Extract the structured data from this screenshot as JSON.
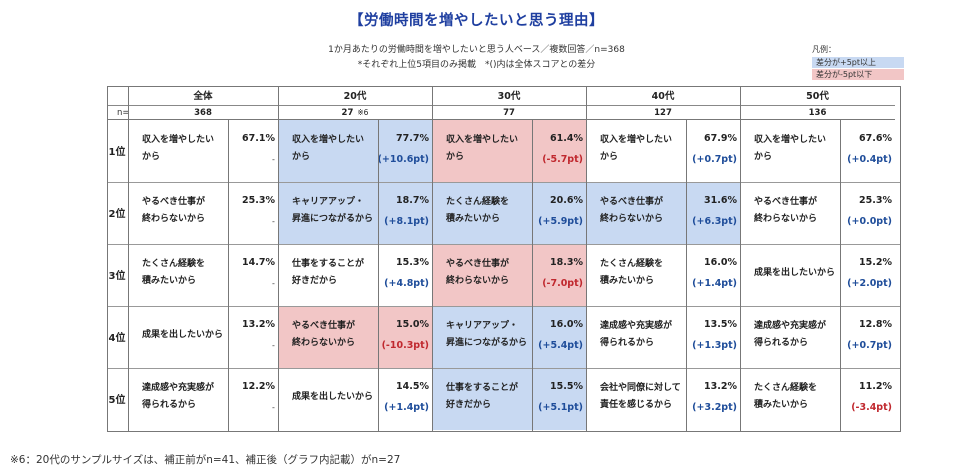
{
  "title": "【労働時間を増やしたいと思う理由】",
  "subtitle1": "1か月あたりの労働時間を増やしたいと思う人ベース／複数回答／n=368",
  "subtitle2": "*それぞれ上位5項目のみ掲載　*()内は全体スコアとの差分",
  "legend": {
    "title": "凡例：",
    "plus": "差分が+5pt以上",
    "minus": "差分が-5pt以下",
    "colors": {
      "plus": "#c8d9f2",
      "minus": "#f2c6c6"
    }
  },
  "n_label": "n=",
  "note6": "※6",
  "groups": [
    {
      "name": "全体",
      "n": "368"
    },
    {
      "name": "20代",
      "n": "27"
    },
    {
      "name": "30代",
      "n": "77"
    },
    {
      "name": "40代",
      "n": "127"
    },
    {
      "name": "50代",
      "n": "136"
    }
  ],
  "ranks": [
    "1位",
    "2位",
    "3位",
    "4位",
    "5位"
  ],
  "rows": [
    [
      {
        "l1": "収入を増やしたい",
        "l2": "から",
        "pct": "67.1%",
        "diff": "-",
        "hl": ""
      },
      {
        "l1": "収入を増やしたい",
        "l2": "から",
        "pct": "77.7%",
        "diff": "(+10.6pt)",
        "hl": "blue"
      },
      {
        "l1": "収入を増やしたい",
        "l2": "から",
        "pct": "61.4%",
        "diff": "(-5.7pt)",
        "hl": "red"
      },
      {
        "l1": "収入を増やしたい",
        "l2": "から",
        "pct": "67.9%",
        "diff": "(+0.7pt)",
        "hl": ""
      },
      {
        "l1": "収入を増やしたい",
        "l2": "から",
        "pct": "67.6%",
        "diff": "(+0.4pt)",
        "hl": ""
      }
    ],
    [
      {
        "l1": "やるべき仕事が",
        "l2": "終わらないから",
        "pct": "25.3%",
        "diff": "-",
        "hl": ""
      },
      {
        "l1": "キャリアアップ・",
        "l2": "昇進につながるから",
        "pct": "18.7%",
        "diff": "(+8.1pt)",
        "hl": "blue"
      },
      {
        "l1": "たくさん経験を",
        "l2": "積みたいから",
        "pct": "20.6%",
        "diff": "(+5.9pt)",
        "hl": "blue"
      },
      {
        "l1": "やるべき仕事が",
        "l2": "終わらないから",
        "pct": "31.6%",
        "diff": "(+6.3pt)",
        "hl": "blue"
      },
      {
        "l1": "やるべき仕事が",
        "l2": "終わらないから",
        "pct": "25.3%",
        "diff": "(+0.0pt)",
        "hl": ""
      }
    ],
    [
      {
        "l1": "たくさん経験を",
        "l2": "積みたいから",
        "pct": "14.7%",
        "diff": "-",
        "hl": ""
      },
      {
        "l1": "仕事をすることが",
        "l2": "好きだから",
        "pct": "15.3%",
        "diff": "(+4.8pt)",
        "hl": ""
      },
      {
        "l1": "やるべき仕事が",
        "l2": "終わらないから",
        "pct": "18.3%",
        "diff": "(-7.0pt)",
        "hl": "red"
      },
      {
        "l1": "たくさん経験を",
        "l2": "積みたいから",
        "pct": "16.0%",
        "diff": "(+1.4pt)",
        "hl": ""
      },
      {
        "l1": "成果を出したいから",
        "l2": "",
        "pct": "15.2%",
        "diff": "(+2.0pt)",
        "hl": ""
      }
    ],
    [
      {
        "l1": "成果を出したいから",
        "l2": "",
        "pct": "13.2%",
        "diff": "-",
        "hl": ""
      },
      {
        "l1": "やるべき仕事が",
        "l2": "終わらないから",
        "pct": "15.0%",
        "diff": "(-10.3pt)",
        "hl": "red"
      },
      {
        "l1": "キャリアアップ・",
        "l2": "昇進につながるから",
        "pct": "16.0%",
        "diff": "(+5.4pt)",
        "hl": "blue"
      },
      {
        "l1": "達成感や充実感が",
        "l2": "得られるから",
        "pct": "13.5%",
        "diff": "(+1.3pt)",
        "hl": ""
      },
      {
        "l1": "達成感や充実感が",
        "l2": "得られるから",
        "pct": "12.8%",
        "diff": "(+0.7pt)",
        "hl": ""
      }
    ],
    [
      {
        "l1": "達成感や充実感が",
        "l2": "得られるから",
        "pct": "12.2%",
        "diff": "-",
        "hl": ""
      },
      {
        "l1": "成果を出したいから",
        "l2": "",
        "pct": "14.5%",
        "diff": "(+1.4pt)",
        "hl": ""
      },
      {
        "l1": "仕事をすることが",
        "l2": "好きだから",
        "pct": "15.5%",
        "diff": "(+5.1pt)",
        "hl": "blue"
      },
      {
        "l1": "会社や同僚に対して",
        "l2": "責任を感じるから",
        "pct": "13.2%",
        "diff": "(+3.2pt)",
        "hl": ""
      },
      {
        "l1": "たくさん経験を",
        "l2": "積みたいから",
        "pct": "11.2%",
        "diff": "(-3.4pt)",
        "hl": ""
      }
    ]
  ],
  "footnote": "※6：20代のサンプルサイズは、補正前がn=41、補正後（グラフ内記載）がn=27"
}
